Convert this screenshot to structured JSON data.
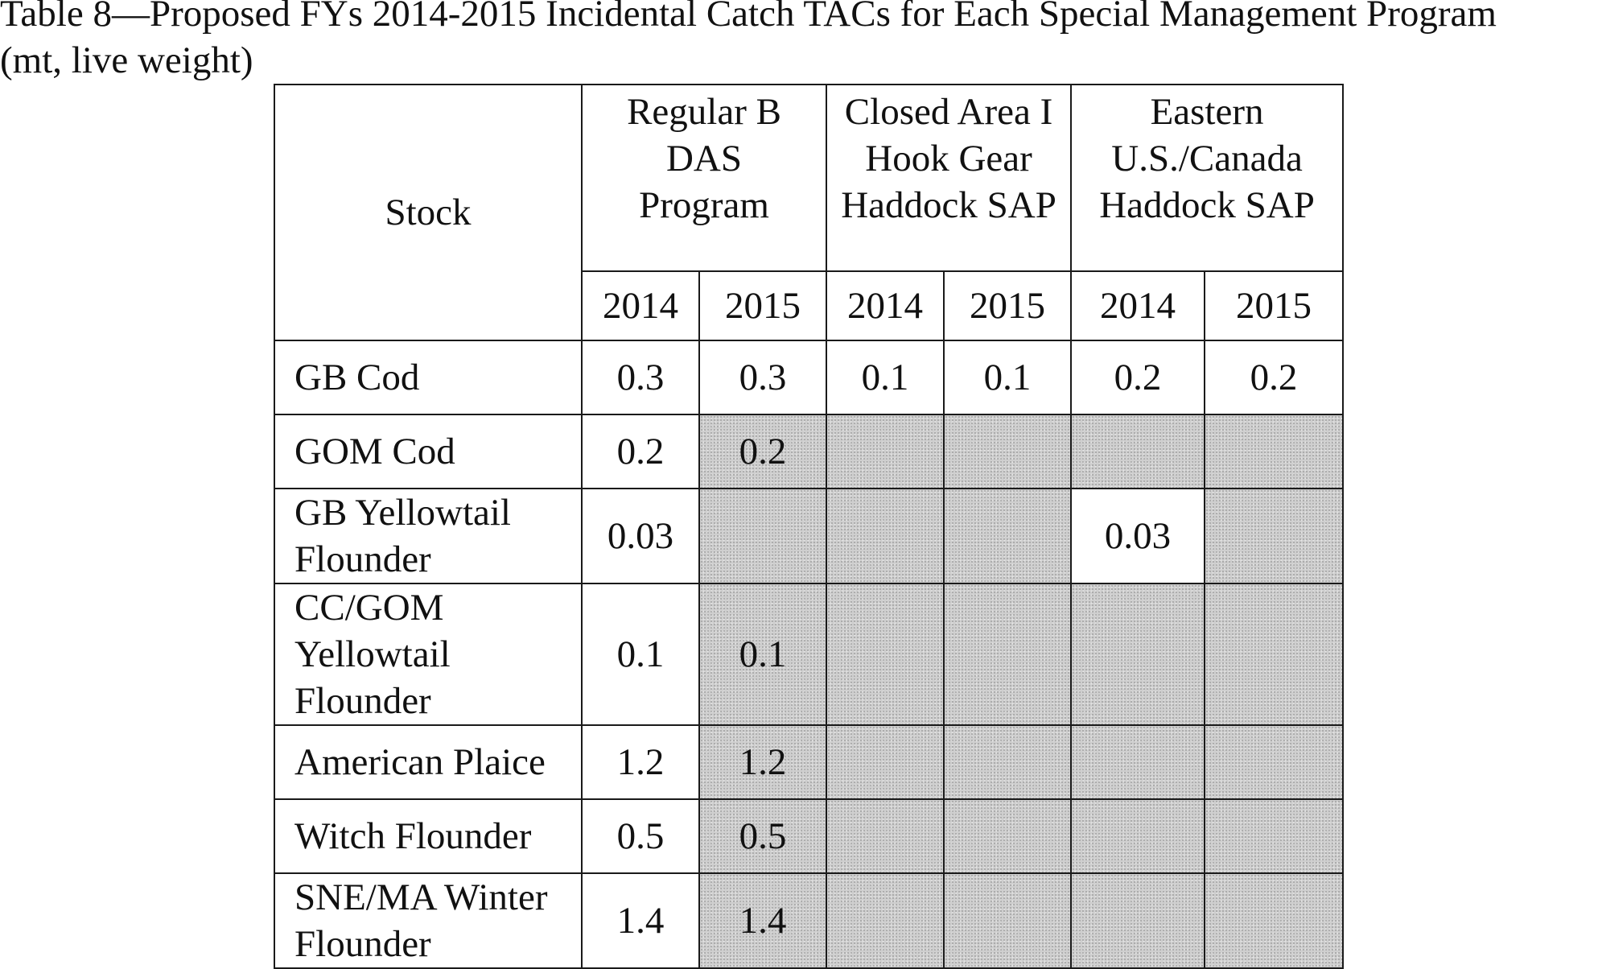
{
  "caption": {
    "line1": "Table 8—Proposed FYs 2014-2015 Incidental Catch TACs for Each Special Management Program",
    "line2": "(mt, live weight)"
  },
  "table": {
    "stock_header": "Stock",
    "groups": [
      {
        "label": "Regular B DAS Program",
        "years": [
          "2014",
          "2015"
        ]
      },
      {
        "label": "Closed Area I Hook Gear Haddock SAP",
        "years": [
          "2014",
          "2015"
        ]
      },
      {
        "label": "Eastern U.S./Canada Haddock SAP",
        "years": [
          "2014",
          "2015"
        ]
      }
    ],
    "rows": [
      {
        "stock": "GB Cod",
        "values": [
          "0.3",
          "0.3",
          "0.1",
          "0.1",
          "0.2",
          "0.2"
        ],
        "shaded": [
          false,
          false,
          false,
          false,
          false,
          false
        ]
      },
      {
        "stock": "GOM Cod",
        "values": [
          "0.2",
          "0.2",
          "",
          "",
          "",
          ""
        ],
        "shaded": [
          false,
          true,
          true,
          true,
          true,
          true
        ]
      },
      {
        "stock": "GB Yellowtail Flounder",
        "values": [
          "0.03",
          "",
          "",
          "",
          "0.03",
          ""
        ],
        "shaded": [
          false,
          true,
          true,
          true,
          false,
          true
        ]
      },
      {
        "stock": "CC/GOM Yellowtail Flounder",
        "values": [
          "0.1",
          "0.1",
          "",
          "",
          "",
          ""
        ],
        "shaded": [
          false,
          true,
          true,
          true,
          true,
          true
        ]
      },
      {
        "stock": "American Plaice",
        "values": [
          "1.2",
          "1.2",
          "",
          "",
          "",
          ""
        ],
        "shaded": [
          false,
          true,
          true,
          true,
          true,
          true
        ]
      },
      {
        "stock": "Witch Flounder",
        "values": [
          "0.5",
          "0.5",
          "",
          "",
          "",
          ""
        ],
        "shaded": [
          false,
          true,
          true,
          true,
          true,
          true
        ]
      },
      {
        "stock": "SNE/MA Winter Flounder",
        "values": [
          "1.4",
          "1.4",
          "",
          "",
          "",
          ""
        ],
        "shaded": [
          false,
          true,
          true,
          true,
          true,
          true
        ]
      }
    ]
  }
}
